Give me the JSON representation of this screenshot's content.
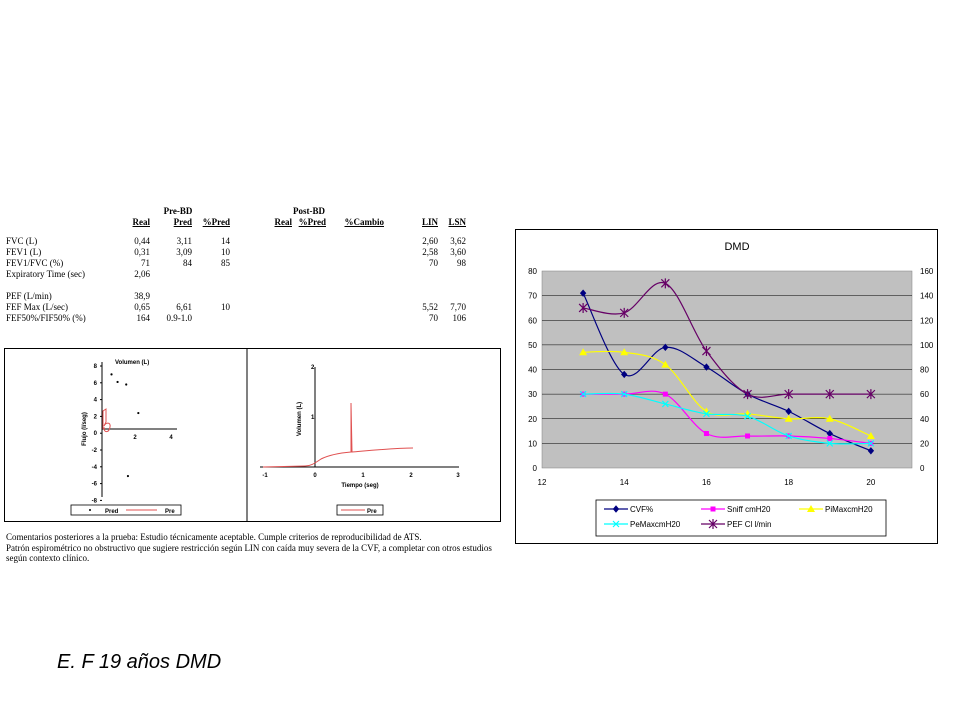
{
  "report": {
    "group_headers": [
      "Pre-BD",
      "Post-BD"
    ],
    "col_headers": [
      "Real",
      "Pred",
      "%Pred",
      "Real",
      "%Pred",
      "%Cambio",
      "LIN",
      "LSN"
    ],
    "rows": [
      {
        "label": "FVC (L)",
        "real": "0,44",
        "pred": "3,11",
        "pct_pred": "14",
        "post_real": "",
        "post_pct": "",
        "cambio": "",
        "lin": "2,60",
        "lsn": "3,62"
      },
      {
        "label": "FEV1 (L)",
        "real": "0,31",
        "pred": "3,09",
        "pct_pred": "10",
        "post_real": "",
        "post_pct": "",
        "cambio": "",
        "lin": "2,58",
        "lsn": "3,60"
      },
      {
        "label": "FEV1/FVC (%)",
        "real": "71",
        "pred": "84",
        "pct_pred": "85",
        "post_real": "",
        "post_pct": "",
        "cambio": "",
        "lin": "70",
        "lsn": "98"
      },
      {
        "label": "Expiratory Time (sec)",
        "real": "2,06",
        "pred": "",
        "pct_pred": "",
        "post_real": "",
        "post_pct": "",
        "cambio": "",
        "lin": "",
        "lsn": ""
      },
      {
        "label": "",
        "real": "",
        "pred": "",
        "pct_pred": "",
        "post_real": "",
        "post_pct": "",
        "cambio": "",
        "lin": "",
        "lsn": ""
      },
      {
        "label": "PEF (L/min)",
        "real": "38,9",
        "pred": "",
        "pct_pred": "",
        "post_real": "",
        "post_pct": "",
        "cambio": "",
        "lin": "",
        "lsn": ""
      },
      {
        "label": "FEF Max (L/sec)",
        "real": "0,65",
        "pred": "6,61",
        "pct_pred": "10",
        "post_real": "",
        "post_pct": "",
        "cambio": "",
        "lin": "5,52",
        "lsn": "7,70"
      },
      {
        "label": "FEF50%/FIF50% (%)",
        "real": "164",
        "pred": "0.9-1.0",
        "pct_pred": "",
        "post_real": "",
        "post_pct": "",
        "cambio": "",
        "lin": "70",
        "lsn": "106"
      }
    ],
    "comments": [
      "Comentarios posteriores a la prueba:  Estudio técnicamente aceptable. Cumple criterios de reproducibilidad de ATS.",
      "Patrón espirométrico no obstructivo que sugiere restricción según LIN con caída muy severa de la CVF, a completar con otros estudios según contexto clínico."
    ]
  },
  "flow_volume": {
    "ylabel": "Flujo (l/seg)",
    "xlabel": "Volumen (L)",
    "yticks": [
      "8",
      "6",
      "4",
      "2",
      "0",
      "-2",
      "-4",
      "-6",
      "-8"
    ],
    "xticks": [
      "2",
      "4"
    ],
    "legend": [
      "Pred",
      "Pre"
    ],
    "pred_points": [
      [
        0.55,
        6.5
      ],
      [
        0.9,
        5.6
      ],
      [
        1.4,
        5.3
      ],
      [
        2.1,
        1.9
      ],
      [
        1.5,
        -5.6
      ]
    ]
  },
  "volume_time": {
    "ylabel": "Volumen (L)",
    "xlabel": "Tiempo (seg)",
    "yticks": [
      "2",
      "1"
    ],
    "xticks": [
      "-1",
      "0",
      "1",
      "2",
      "3"
    ],
    "legend": [
      "Pre"
    ]
  },
  "caption": "E. F  19 años DMD",
  "chart_data": {
    "type": "line",
    "title": "DMD",
    "x": [
      13,
      14,
      15,
      16,
      17,
      18,
      19,
      20
    ],
    "xticks": [
      12,
      14,
      16,
      18,
      20
    ],
    "xlim": [
      12,
      21
    ],
    "ylim": [
      0,
      80
    ],
    "yticks": [
      0,
      10,
      20,
      30,
      40,
      50,
      60,
      70,
      80
    ],
    "y2lim": [
      0,
      160
    ],
    "y2ticks": [
      0,
      20,
      40,
      60,
      80,
      100,
      120,
      140,
      160
    ],
    "grid": "horizontal",
    "legend_position": "bottom",
    "plot_background": "#c0c0c0",
    "series": [
      {
        "name": "CVF%",
        "color": "#000080",
        "marker": "diamond",
        "axis": "left",
        "values": [
          71,
          38,
          49,
          41,
          30,
          23,
          14,
          7
        ]
      },
      {
        "name": "Sniff cmH20",
        "color": "#ff00ff",
        "marker": "square",
        "axis": "left",
        "values": [
          30,
          30,
          30,
          14,
          13,
          13,
          12,
          10
        ]
      },
      {
        "name": "PiMaxcmH20",
        "color": "#ffff00",
        "marker": "triangle",
        "axis": "left",
        "values": [
          47,
          47,
          42,
          23,
          22,
          20,
          20,
          13
        ]
      },
      {
        "name": "PeMaxcmH20",
        "color": "#00ffff",
        "marker": "x",
        "axis": "left",
        "values": [
          30,
          30,
          26,
          22,
          21,
          13,
          10,
          10
        ]
      },
      {
        "name": "PEF Cl l/min",
        "color": "#660066",
        "marker": "star",
        "axis": "right",
        "values": [
          130,
          126,
          150,
          95,
          60,
          60,
          60,
          60
        ]
      }
    ]
  }
}
